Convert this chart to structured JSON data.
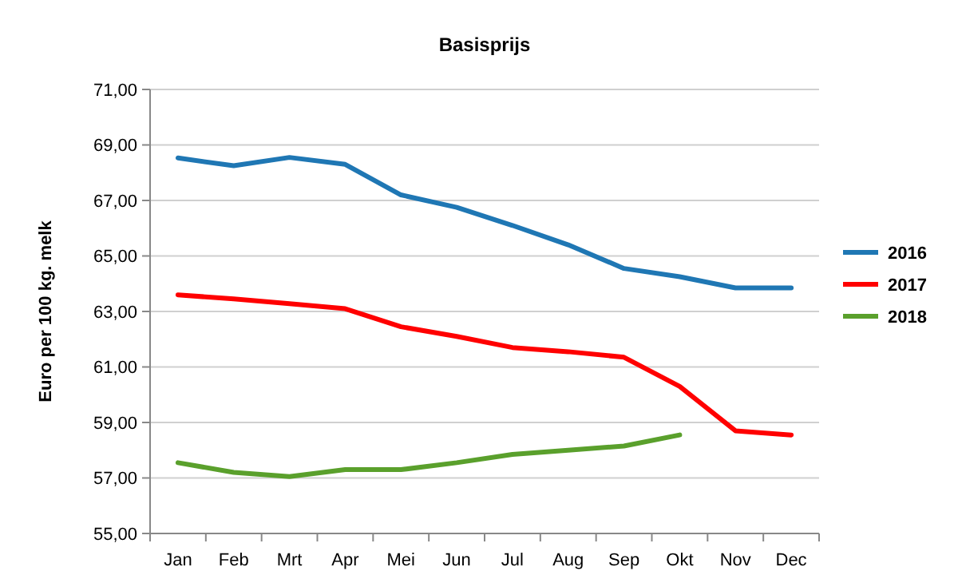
{
  "chart_data": {
    "type": "line",
    "title": "Basisprijs",
    "ylabel": "Euro per 100 kg. melk",
    "categories": [
      "Jan",
      "Feb",
      "Mrt",
      "Apr",
      "Mei",
      "Jun",
      "Jul",
      "Aug",
      "Sep",
      "Okt",
      "Nov",
      "Dec"
    ],
    "series": [
      {
        "name": "2016",
        "color": "#1f77b4",
        "values": [
          68.53,
          68.25,
          68.55,
          68.3,
          67.2,
          66.75,
          66.1,
          65.4,
          64.55,
          64.25,
          63.85,
          63.85
        ]
      },
      {
        "name": "2017",
        "color": "#ff0000",
        "values": [
          63.6,
          63.45,
          63.28,
          63.1,
          62.45,
          62.1,
          61.7,
          61.55,
          61.35,
          60.3,
          58.7,
          58.55
        ]
      },
      {
        "name": "2018",
        "color": "#5aa02c",
        "values": [
          57.55,
          57.2,
          57.05,
          57.3,
          57.3,
          57.55,
          57.85,
          58.0,
          58.15,
          58.55,
          null,
          null
        ]
      }
    ],
    "ylim": [
      55,
      71
    ],
    "yticks": [
      {
        "value": 55,
        "label": "55,00"
      },
      {
        "value": 57,
        "label": "57,00"
      },
      {
        "value": 59,
        "label": "59,00"
      },
      {
        "value": 61,
        "label": "61,00"
      },
      {
        "value": 63,
        "label": "63,00"
      },
      {
        "value": 65,
        "label": "65,00"
      },
      {
        "value": 67,
        "label": "67,00"
      },
      {
        "value": 69,
        "label": "69,00"
      },
      {
        "value": 71,
        "label": "71,00"
      }
    ],
    "grid": "y",
    "legend": "right",
    "marker": "none",
    "line_style": "solid"
  }
}
